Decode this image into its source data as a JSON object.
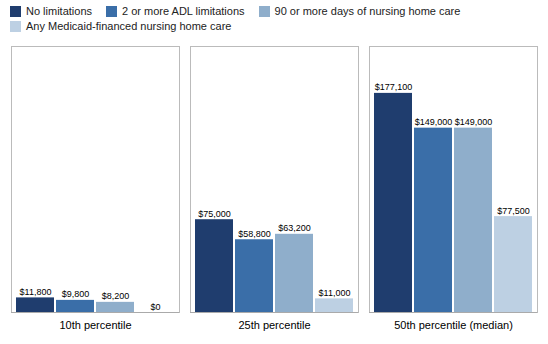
{
  "chart_data": {
    "type": "bar",
    "categories": [
      "10th percentile",
      "25th percentile",
      "50th percentile (median)"
    ],
    "series": [
      {
        "name": "No limitations",
        "color": "#1F3D6E",
        "values": [
          11800,
          75000,
          177100
        ],
        "value_labels": [
          "$11,800",
          "$75,000",
          "$177,100"
        ]
      },
      {
        "name": "2 or more ADL limitations",
        "color": "#3A6EA8",
        "values": [
          9800,
          58800,
          149000
        ],
        "value_labels": [
          "$9,800",
          "$58,800",
          "$149,000"
        ]
      },
      {
        "name": "90 or more days of nursing home care",
        "color": "#8FAECB",
        "values": [
          8200,
          63200,
          149000
        ],
        "value_labels": [
          "$8,200",
          "$63,200",
          "$149,000"
        ]
      },
      {
        "name": "Any Medicaid-financed nursing home care",
        "color": "#BDD0E3",
        "values": [
          0,
          11000,
          77500
        ],
        "value_labels": [
          "$0",
          "$11,000",
          "$77,500"
        ]
      }
    ],
    "ylim": [
      0,
      215000
    ],
    "data_labels": true,
    "legend": "upper left",
    "tick_labels": "x"
  }
}
